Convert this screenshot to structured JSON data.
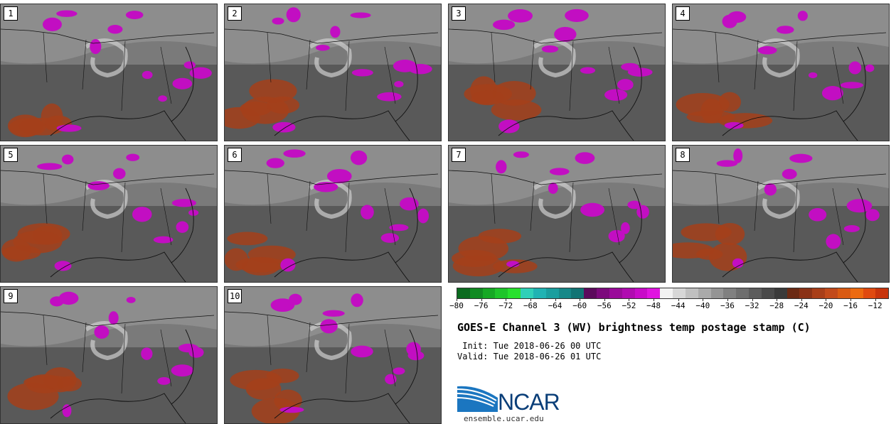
{
  "stamps": [
    "1",
    "2",
    "3",
    "4",
    "5",
    "6",
    "7",
    "8",
    "9",
    "10"
  ],
  "colorbar": {
    "ticks": [
      "−80",
      "−76",
      "−72",
      "−68",
      "−64",
      "−60",
      "−56",
      "−52",
      "−48",
      "−44",
      "−40",
      "−36",
      "−32",
      "−28",
      "−24",
      "−20",
      "−16",
      "−12"
    ],
    "tick_values": [
      -80,
      -76,
      -72,
      -68,
      -64,
      -60,
      -56,
      -52,
      -48,
      -44,
      -40,
      -36,
      -32,
      -28,
      -24,
      -20,
      -16,
      -12
    ],
    "range": [
      -80,
      -10
    ],
    "colors": [
      "#0b6b1f",
      "#118a22",
      "#16a824",
      "#1ec52a",
      "#28e02e",
      "#2fd0b8",
      "#20b3b3",
      "#1a9e9e",
      "#168888",
      "#127474",
      "#5c0a5c",
      "#7c0a7c",
      "#9a0a9a",
      "#b00ab0",
      "#c80ac8",
      "#e014e0",
      "#f2f2f2",
      "#d7d7d7",
      "#c0c0c0",
      "#aaaaaa",
      "#949494",
      "#808080",
      "#6e6e6e",
      "#5c5c5c",
      "#4a4a4a",
      "#3a3a3a",
      "#6b2a14",
      "#8a3216",
      "#a83e18",
      "#c24a1a",
      "#d95a12",
      "#ec6a10",
      "#e04a10",
      "#c8340c"
    ]
  },
  "title": "GOES-E Channel 3 (WV) brightness temp postage stamp (C)",
  "init": " Init: Tue 2018-06-26 00 UTC",
  "valid": "Valid: Tue 2018-06-26 01 UTC",
  "logo": {
    "text": "NCAR",
    "site": "ensemble.ucar.edu"
  }
}
